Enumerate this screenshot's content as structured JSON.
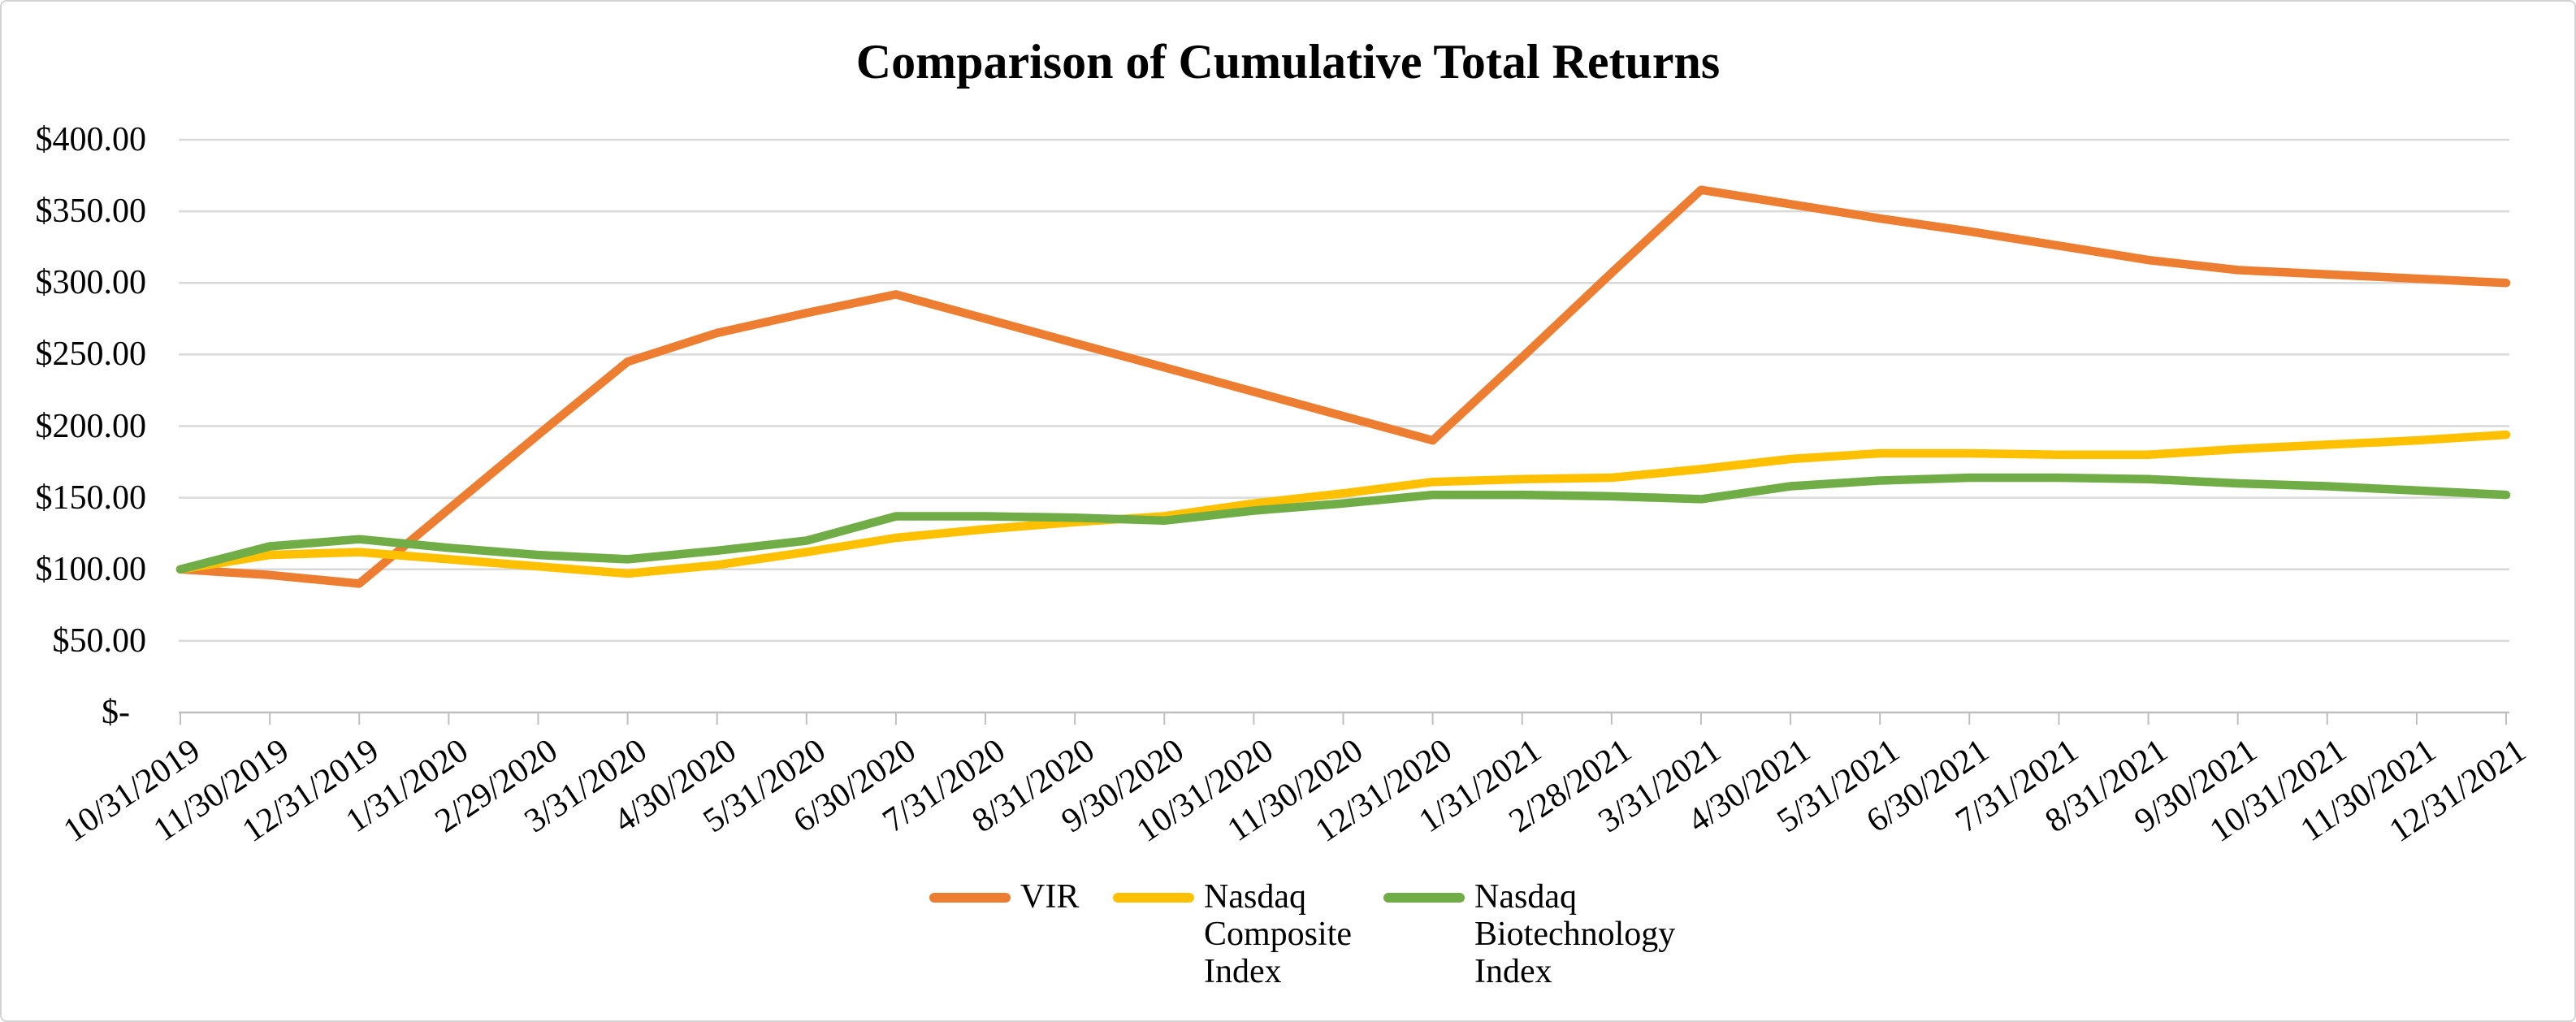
{
  "title": "Comparison of Cumulative Total Returns",
  "chart_data": {
    "type": "line",
    "title": "Comparison of Cumulative Total Returns",
    "categories": [
      "10/31/2019",
      "11/30/2019",
      "12/31/2019",
      "1/31/2020",
      "2/29/2020",
      "3/31/2020",
      "4/30/2020",
      "5/31/2020",
      "6/30/2020",
      "7/31/2020",
      "8/31/2020",
      "9/30/2020",
      "10/31/2020",
      "11/30/2020",
      "12/31/2020",
      "1/31/2021",
      "2/28/2021",
      "3/31/2021",
      "4/30/2021",
      "5/31/2021",
      "6/30/2021",
      "7/31/2021",
      "8/31/2021",
      "9/30/2021",
      "10/31/2021",
      "11/30/2021",
      "12/31/2021"
    ],
    "series": [
      {
        "name": "VIR",
        "color": "#ED7D31",
        "legend_lines": [
          "VIR"
        ],
        "values": [
          100,
          96,
          90,
          142,
          194,
          245,
          265,
          279,
          292,
          275,
          258,
          241,
          224,
          207,
          190,
          248,
          307,
          365,
          355,
          345,
          336,
          326,
          316,
          309,
          306,
          303,
          300
        ]
      },
      {
        "name": "Nasdaq Composite Index",
        "color": "#FFC000",
        "legend_lines": [
          "Nasdaq",
          "Composite",
          "Index"
        ],
        "values": [
          100,
          110,
          112,
          107,
          102,
          97,
          103,
          112,
          122,
          128,
          133,
          137,
          146,
          153,
          161,
          163,
          164,
          170,
          177,
          181,
          181,
          180,
          180,
          184,
          187,
          190,
          194
        ]
      },
      {
        "name": "Nasdaq Biotechnology Index",
        "color": "#70AD47",
        "legend_lines": [
          "Nasdaq",
          "Biotechnology",
          "Index"
        ],
        "values": [
          100,
          116,
          121,
          115,
          110,
          107,
          113,
          120,
          137,
          137,
          136,
          134,
          141,
          146,
          152,
          152,
          151,
          149,
          158,
          162,
          164,
          164,
          163,
          160,
          158,
          155,
          152
        ]
      }
    ],
    "y_axis": {
      "tick_labels": [
        "$400.00",
        "$350.00",
        "$300.00",
        "$250.00",
        "$200.00",
        "$150.00",
        "$100.00",
        "$50.00",
        "$-"
      ],
      "tick_values": [
        400,
        350,
        300,
        250,
        200,
        150,
        100,
        50,
        0
      ],
      "ylim": [
        0,
        400
      ]
    },
    "grid": true,
    "legend_position": "bottom",
    "gridline_color": "#D9D9D9",
    "axis_color": "#BFBFBF",
    "text_color": "#000000"
  }
}
